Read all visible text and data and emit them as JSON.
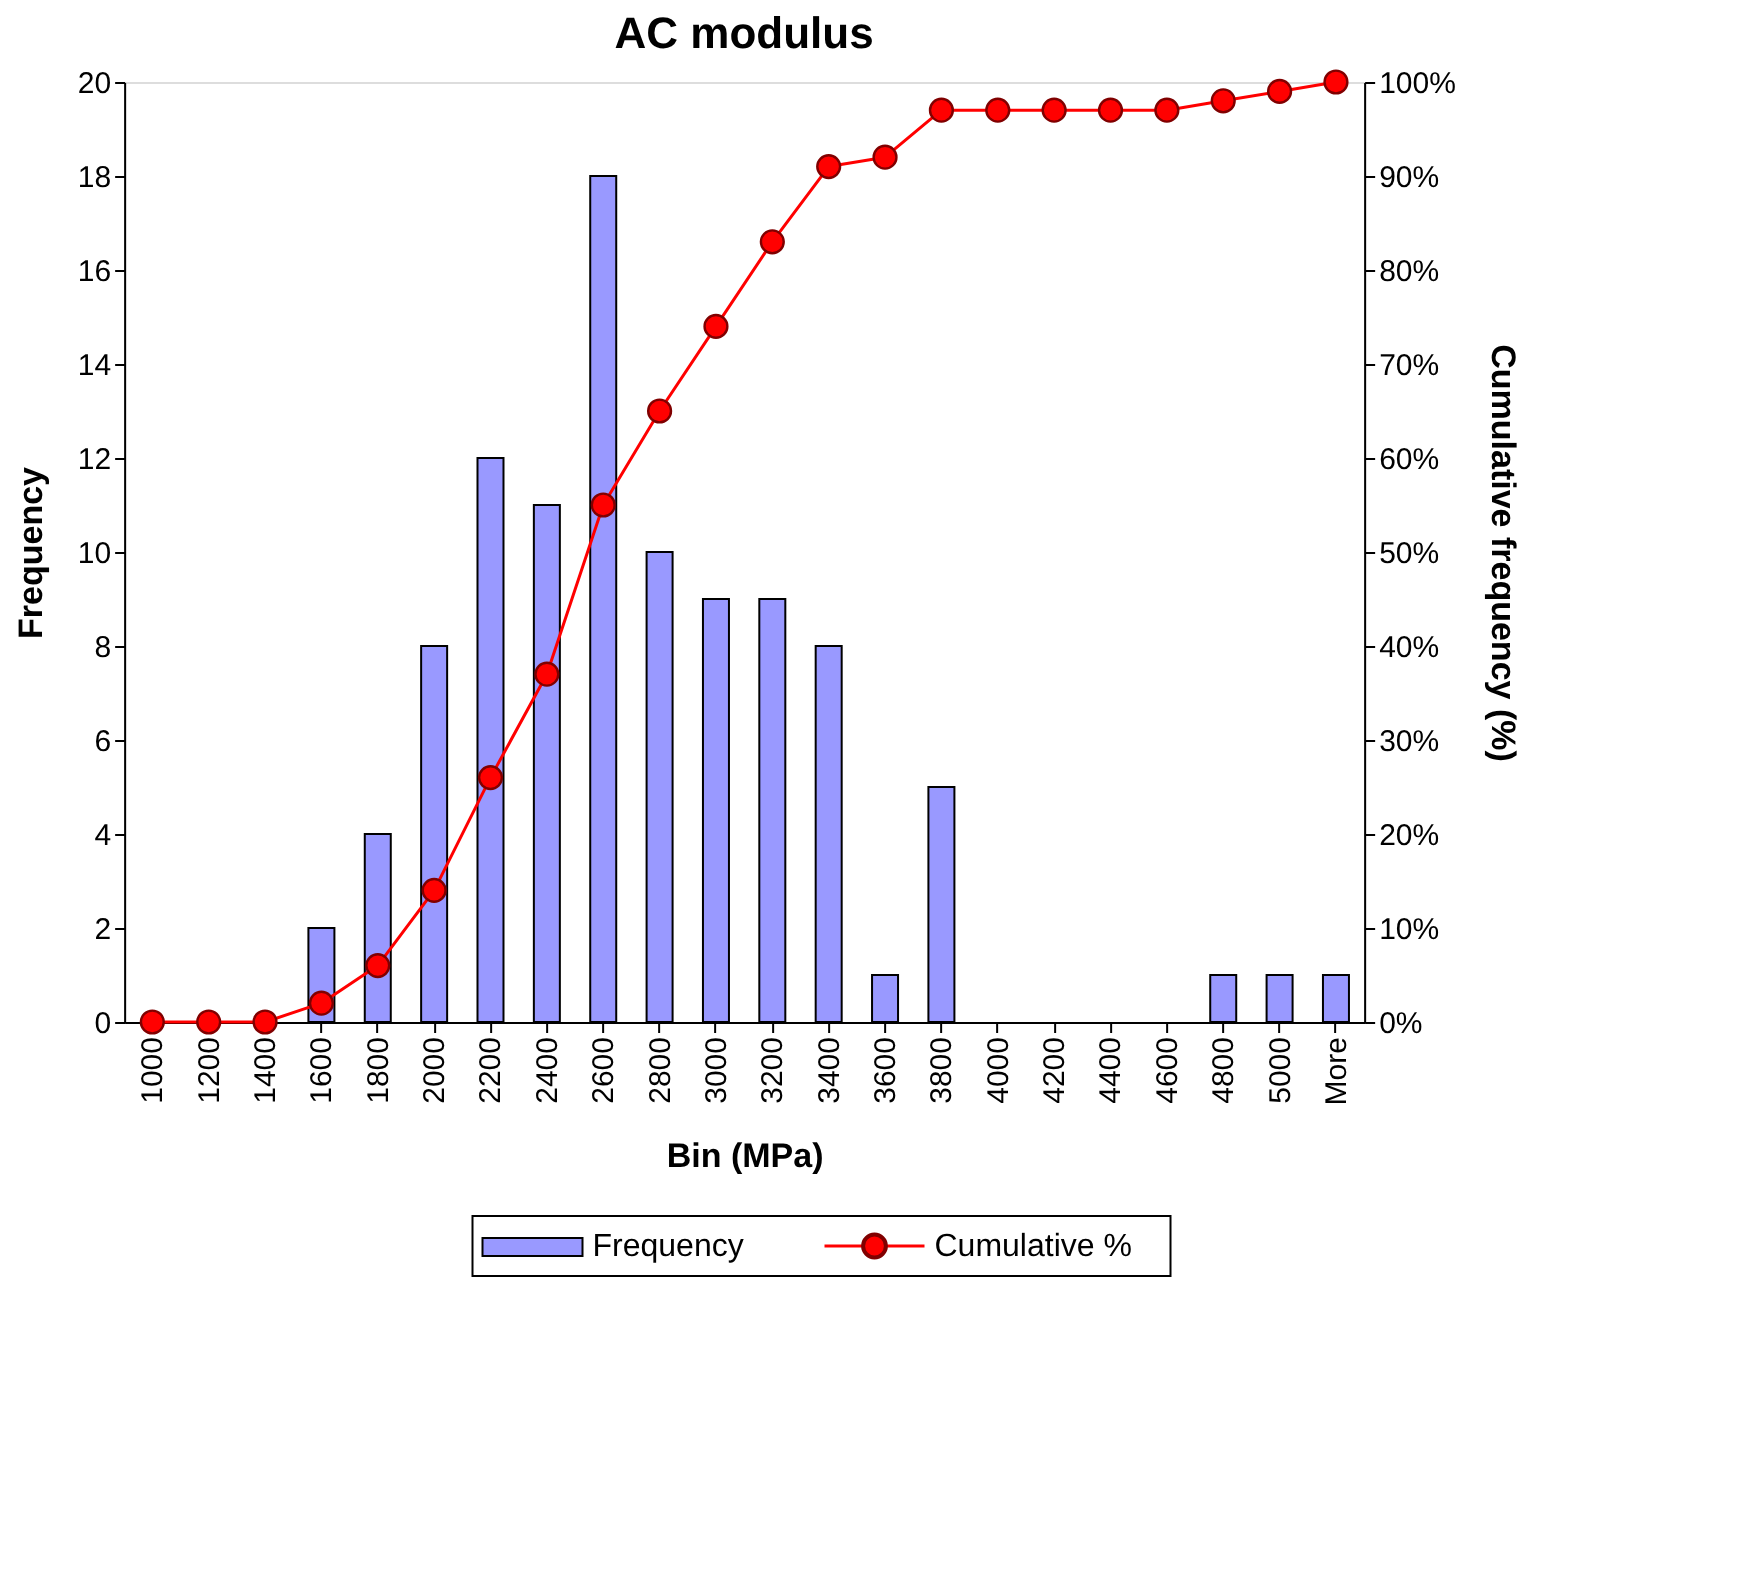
{
  "chart_data": {
    "type": "bar",
    "title": "AC modulus",
    "xlabel": "Bin (MPa)",
    "ylabel": "Frequency",
    "y2label": "Cumulative frequency (%)",
    "categories": [
      "1000",
      "1200",
      "1400",
      "1600",
      "1800",
      "2000",
      "2200",
      "2400",
      "2600",
      "2800",
      "3000",
      "3200",
      "3400",
      "3600",
      "3800",
      "4000",
      "4200",
      "4400",
      "4600",
      "4800",
      "5000",
      "More"
    ],
    "series": [
      {
        "name": "Frequency",
        "color": "#9999ff",
        "values": [
          0,
          0,
          0,
          2,
          4,
          8,
          12,
          11,
          18,
          10,
          9,
          9,
          8,
          1,
          5,
          0,
          0,
          0,
          0,
          1,
          1,
          1
        ]
      },
      {
        "name": "Cumulative %",
        "type": "line",
        "axis": "y2",
        "color": "#ff0000",
        "marker": "circle",
        "values": [
          0,
          0,
          0,
          2,
          6,
          14,
          26,
          37,
          55,
          65,
          74,
          83,
          91,
          92,
          97,
          97,
          97,
          97,
          97,
          98,
          99,
          100
        ]
      }
    ],
    "ylim": [
      0,
      20
    ],
    "yticks": [
      0,
      2,
      4,
      6,
      8,
      10,
      12,
      14,
      16,
      18,
      20
    ],
    "y2lim": [
      0,
      100
    ],
    "y2ticks": [
      {
        "value": 0,
        "label": "0%"
      },
      {
        "value": 10,
        "label": "10%"
      },
      {
        "value": 20,
        "label": "20%"
      },
      {
        "value": 30,
        "label": "30%"
      },
      {
        "value": 40,
        "label": "40%"
      },
      {
        "value": 50,
        "label": "50%"
      },
      {
        "value": 60,
        "label": "60%"
      },
      {
        "value": 70,
        "label": "70%"
      },
      {
        "value": 80,
        "label": "80%"
      },
      {
        "value": 90,
        "label": "90%"
      },
      {
        "value": 100,
        "label": "100%"
      }
    ],
    "grid": false,
    "legend": "bottom"
  }
}
